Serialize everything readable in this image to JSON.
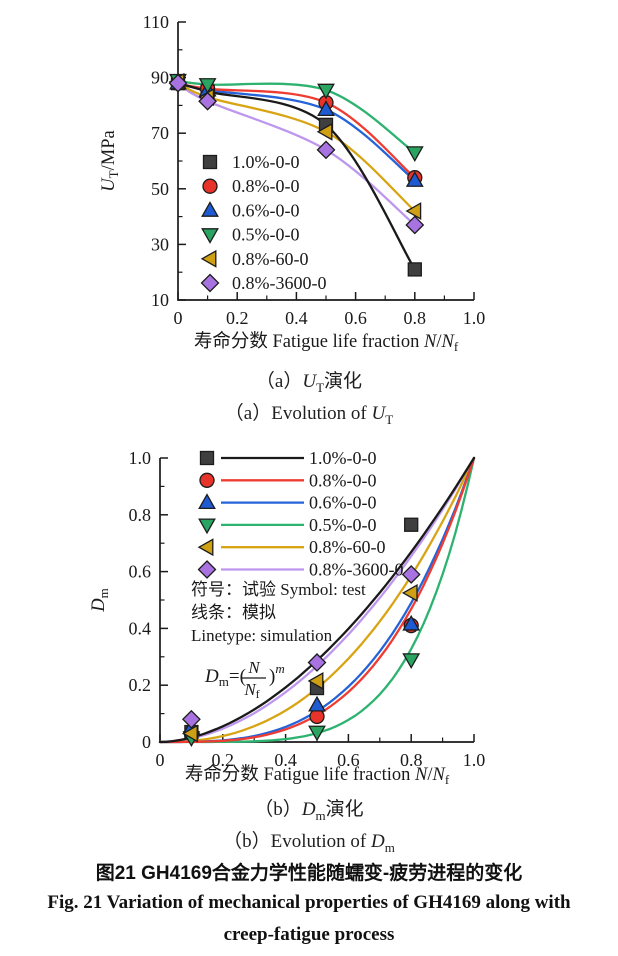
{
  "captions": {
    "a_cn": {
      "pre": "（a）",
      "sym": "U",
      "sub": "T",
      "post": "演化"
    },
    "a_en": {
      "pre": "（a）Evolution of ",
      "sym": "U",
      "sub": "T",
      "post": ""
    },
    "b_cn": {
      "pre": "（b）",
      "sym": "D",
      "sub": "m",
      "post": "演化"
    },
    "b_en": {
      "pre": "（b）Evolution of ",
      "sym": "D",
      "sub": "m",
      "post": ""
    },
    "fig_cn": "图21  GH4169合金力学性能随蠕变-疲劳进程的变化",
    "fig_en_line1": "Fig. 21  Variation of mechanical properties of GH4169 along with",
    "fig_en_line2": "creep-fatigue process"
  },
  "chart_data": [
    {
      "id": "chart-ut",
      "type": "scatter",
      "title": "",
      "xlabel": {
        "prefix": "寿命分数 Fatigue life fraction ",
        "var1": "N",
        "slash": "/",
        "var2": "N",
        "var2_sub": "f"
      },
      "ylabel": {
        "sym": "U",
        "sub": "T",
        "unit": "/MPa"
      },
      "xlim": [
        0,
        1.0
      ],
      "ylim": [
        10,
        110
      ],
      "xticks": [
        0,
        0.2,
        0.4,
        0.6,
        0.8,
        1.0
      ],
      "xtick_labels": [
        "0",
        "0.2",
        "0.4",
        "0.6",
        "0.8",
        "1.0"
      ],
      "x_minor_step": 0.1,
      "yticks": [
        10,
        30,
        50,
        70,
        90,
        110
      ],
      "ytick_labels": [
        "10",
        "30",
        "50",
        "70",
        "90",
        "110"
      ],
      "y_minor_step": 10,
      "grid": false,
      "legend_position": "inside-lower-left",
      "legend_style": "marker-only",
      "series": [
        {
          "name": "1.0%-0-0",
          "marker": "square",
          "line_color": "#1a1a1a",
          "fill": "#3f3f3f",
          "x": [
            0,
            0.1,
            0.5,
            0.8
          ],
          "y": [
            88,
            85,
            73,
            21
          ]
        },
        {
          "name": "0.8%-0-0",
          "marker": "circle",
          "line_color": "#ef3b31",
          "fill": "#e8332b",
          "x": [
            0,
            0.1,
            0.5,
            0.8
          ],
          "y": [
            88,
            86,
            81,
            54
          ]
        },
        {
          "name": "0.6%-0-0",
          "marker": "triangle-up",
          "line_color": "#2563d8",
          "fill": "#1e5ad2",
          "x": [
            0,
            0.1,
            0.5,
            0.8
          ],
          "y": [
            88,
            85.5,
            78.5,
            53
          ]
        },
        {
          "name": "0.5%-0-0",
          "marker": "triangle-down",
          "line_color": "#2db270",
          "fill": "#2aa561",
          "x": [
            0,
            0.1,
            0.5,
            0.8
          ],
          "y": [
            89,
            87.5,
            85.5,
            63
          ]
        },
        {
          "name": "0.8%-60-0",
          "marker": "triangle-left",
          "line_color": "#d8a414",
          "fill": "#cfa013",
          "x": [
            0,
            0.1,
            0.5,
            0.8
          ],
          "y": [
            88.5,
            83,
            70.5,
            42
          ]
        },
        {
          "name": "0.8%-3600-0",
          "marker": "diamond",
          "line_color": "#bd96ee",
          "fill": "#a873e0",
          "x": [
            0,
            0.1,
            0.5,
            0.8
          ],
          "y": [
            88,
            81.5,
            64,
            37
          ]
        }
      ]
    },
    {
      "id": "chart-dm",
      "type": "scatter+model-curves",
      "title": "",
      "xlabel": {
        "prefix": "寿命分数 Fatigue life fraction ",
        "var1": "N",
        "slash": "/",
        "var2": "N",
        "var2_sub": "f"
      },
      "ylabel": {
        "sym": "D",
        "sub": "m",
        "unit": ""
      },
      "xlim": [
        0,
        1.0
      ],
      "ylim": [
        0,
        1.0
      ],
      "xticks": [
        0,
        0.2,
        0.4,
        0.6,
        0.8,
        1.0
      ],
      "xtick_labels": [
        "0",
        "0.2",
        "0.4",
        "0.6",
        "0.8",
        "1.0"
      ],
      "x_minor_step": 0.1,
      "yticks": [
        0,
        0.2,
        0.4,
        0.6,
        0.8,
        1.0
      ],
      "ytick_labels": [
        "0",
        "0.2",
        "0.4",
        "0.6",
        "0.8",
        "1.0"
      ],
      "y_minor_step": 0.1,
      "grid": false,
      "legend_position": "inside-upper-left",
      "legend_style": "marker-line",
      "notes": [
        "符号：试验 Symbol: test",
        "线条：模拟",
        "Linetype: simulation"
      ],
      "formula": {
        "sym": "D",
        "sym_sub": "m",
        "eq": "=(",
        "num": "N",
        "den": "N",
        "den_sub": "f",
        "close": ")",
        "exp": "m"
      },
      "model": "Dm = (N/Nf)^m, curves are simulation, symbols are test data",
      "series": [
        {
          "name": "1.0%-0-0",
          "marker": "square",
          "line_color": "#1a1a1a",
          "fill": "#3f3f3f",
          "m": 1.8,
          "x": [
            0.1,
            0.5,
            0.8
          ],
          "y": [
            0.035,
            0.19,
            0.765
          ]
        },
        {
          "name": "0.8%-0-0",
          "marker": "circle",
          "line_color": "#ef3b31",
          "fill": "#e8332b",
          "m": 3.4,
          "x": [
            0.1,
            0.5,
            0.8
          ],
          "y": [
            0.03,
            0.09,
            0.41
          ]
        },
        {
          "name": "0.6%-0-0",
          "marker": "triangle-up",
          "line_color": "#2563d8",
          "fill": "#1e5ad2",
          "m": 3.2,
          "x": [
            0.1,
            0.5,
            0.8
          ],
          "y": [
            0.05,
            0.13,
            0.415
          ]
        },
        {
          "name": "0.5%-0-0",
          "marker": "triangle-down",
          "line_color": "#2db270",
          "fill": "#2aa561",
          "m": 5.0,
          "x": [
            0.1,
            0.5,
            0.8
          ],
          "y": [
            0.015,
            0.035,
            0.29
          ]
        },
        {
          "name": "0.8%-60-0",
          "marker": "triangle-left",
          "line_color": "#d8a414",
          "fill": "#cfa013",
          "m": 2.4,
          "x": [
            0.1,
            0.5,
            0.8
          ],
          "y": [
            0.03,
            0.215,
            0.525
          ]
        },
        {
          "name": "0.8%-3600-0",
          "marker": "diamond",
          "line_color": "#bd96ee",
          "fill": "#a873e0",
          "m": 1.9,
          "x": [
            0.1,
            0.5,
            0.8
          ],
          "y": [
            0.08,
            0.28,
            0.59
          ]
        }
      ]
    }
  ]
}
